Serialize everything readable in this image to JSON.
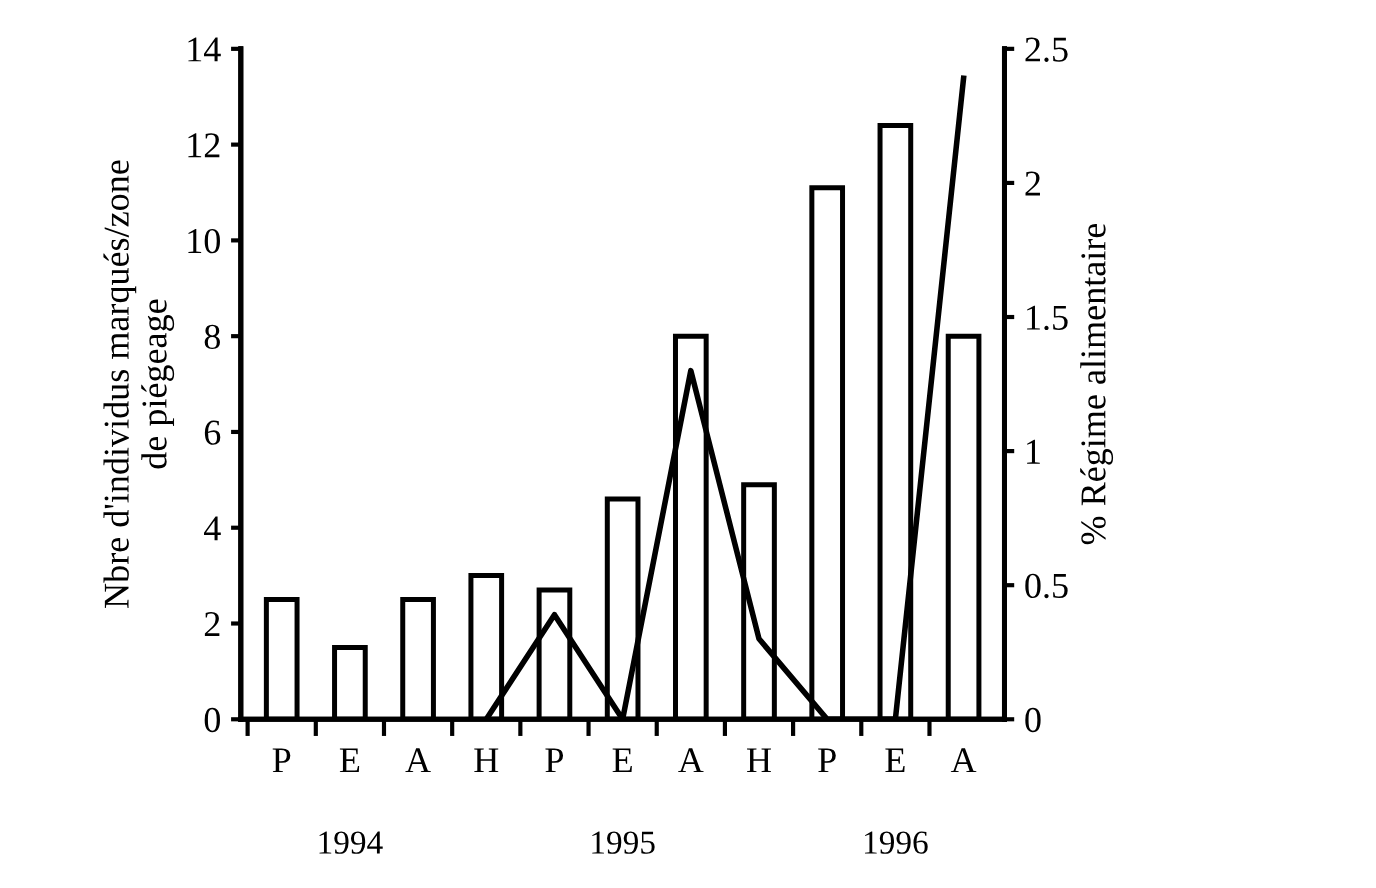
{
  "chart_data": {
    "type": "bar",
    "categories": [
      "P",
      "E",
      "A",
      "H",
      "P",
      "E",
      "A",
      "H",
      "P",
      "E",
      "A"
    ],
    "series": [
      {
        "color": "#ffffff",
        "values": [
          2.5,
          1.5,
          2.5,
          3.0,
          2.7,
          4.6,
          8.0,
          4.9,
          11.1,
          12.4,
          8.0
        ]
      },
      {
        "type": "line",
        "axis": "y2",
        "color": "#000000",
        "values": [
          null,
          null,
          null,
          0,
          0.39,
          0,
          1.3,
          0.3,
          0,
          0,
          2.39
        ]
      }
    ],
    "ylabel": "Nbre d'individus marqués/zone\nde piégeage",
    "y2label": "% Régime alimentaire",
    "ylim": [
      0,
      14
    ],
    "yticks": [
      0,
      2,
      4,
      6,
      8,
      10,
      12,
      14
    ],
    "y2lim": [
      0,
      2.5
    ],
    "y2ticks": [
      0,
      0.5,
      1,
      1.5,
      2,
      2.5
    ],
    "annotations": [
      "1994",
      "1995",
      "1996"
    ],
    "grid": false,
    "legend": false,
    "marker": "none",
    "line_style": "solid"
  }
}
